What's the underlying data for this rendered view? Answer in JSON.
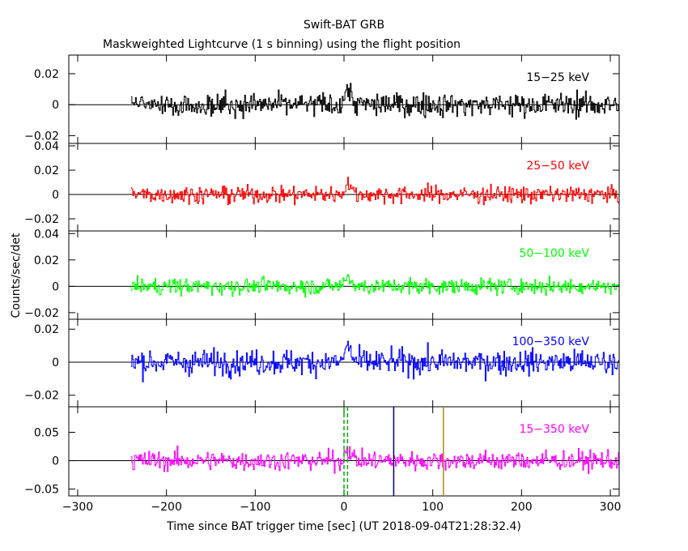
{
  "chart_data": {
    "type": "line",
    "title": "Swift-BAT GRB",
    "subtitle": "Maskweighted Lightcurve (1 s binning) using the flight position",
    "xlabel": "Time since BAT trigger time [sec] (UT 2018-09-04T21:28:32.4)",
    "ylabel": "Counts/sec/det",
    "xlim": [
      -310,
      310
    ],
    "x_ticks": [
      "−300",
      "−200",
      "−100",
      "0",
      "100",
      "200",
      "300"
    ],
    "data_x_range": [
      -240,
      310
    ],
    "binning_sec": 1,
    "panels": [
      {
        "name": "15−25 keV",
        "color": "#000000",
        "ylim": [
          -0.025,
          0.032
        ],
        "y_ticks": [
          -0.02,
          0,
          0.02
        ],
        "y_tick_labels": [
          "−0.02",
          "0",
          "0.02"
        ],
        "noise_sigma": 0.0075
      },
      {
        "name": "25−50 keV",
        "color": "#ff0000",
        "ylim": [
          -0.03,
          0.042
        ],
        "y_ticks": [
          -0.02,
          0,
          0.02,
          0.04
        ],
        "y_tick_labels": [
          "−0.02",
          "0",
          "0.02",
          "0.04"
        ],
        "noise_sigma": 0.007
      },
      {
        "name": "50−100 keV",
        "color": "#00ff00",
        "ylim": [
          -0.025,
          0.042
        ],
        "y_ticks": [
          -0.02,
          0,
          0.02,
          0.04
        ],
        "y_tick_labels": [
          "−0.02",
          "0",
          "0.02",
          "0.04"
        ],
        "noise_sigma": 0.006
      },
      {
        "name": "100−350 keV",
        "color": "#0000ff",
        "ylim": [
          -0.027,
          0.026
        ],
        "y_ticks": [
          -0.02,
          0,
          0.02
        ],
        "y_tick_labels": [
          "−0.02",
          "0",
          "0.02"
        ],
        "noise_sigma": 0.0075
      },
      {
        "name": "15−350 keV",
        "color": "#ff00ff",
        "ylim": [
          -0.062,
          0.095
        ],
        "y_ticks": [
          -0.05,
          0,
          0.05
        ],
        "y_tick_labels": [
          "−0.05",
          "0",
          "0.05"
        ],
        "noise_sigma": 0.017
      }
    ],
    "vertical_markers": [
      {
        "x": 0,
        "color": "#00aa00",
        "style": "dashed"
      },
      {
        "x": 4,
        "color": "#00aa00",
        "style": "dashed"
      },
      {
        "x": 56,
        "color": "#000080",
        "style": "solid"
      },
      {
        "x": 112,
        "color": "#b8860b",
        "style": "solid"
      }
    ],
    "grid": false,
    "legend": "panel labels top-right"
  }
}
